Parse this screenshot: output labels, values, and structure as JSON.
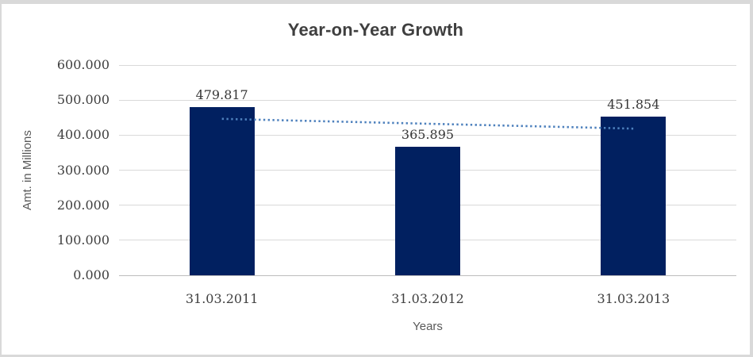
{
  "chart_data": {
    "type": "bar",
    "title": "Year-on-Year Growth",
    "categories": [
      "31.03.2011",
      "31.03.2012",
      "31.03.2013"
    ],
    "values": [
      479.817,
      365.895,
      451.854
    ],
    "data_labels": [
      "479.817",
      "365.895",
      "451.854"
    ],
    "xlabel": "Years",
    "ylabel": "Amt. in Millions",
    "ylim": [
      0,
      600
    ],
    "ytick_step": 100,
    "ytick_labels": [
      "0.000",
      "100.000",
      "200.000",
      "300.000",
      "400.000",
      "500.000",
      "600.000"
    ],
    "grid": true,
    "legend": false,
    "trendline": {
      "type": "linear",
      "style": "dotted"
    }
  },
  "styles": {
    "bar_color": "#012060",
    "trendline_color": "#4e81bd",
    "gridline_color": "#d9d9d9",
    "axis_line_color": "#bdbdbd",
    "title_color": "#3f3f3f",
    "tick_label_color": "#404040",
    "data_label_color": "#363636",
    "axis_title_color": "#595959",
    "border_color": "#d9d9d9",
    "background": "#ffffff"
  }
}
